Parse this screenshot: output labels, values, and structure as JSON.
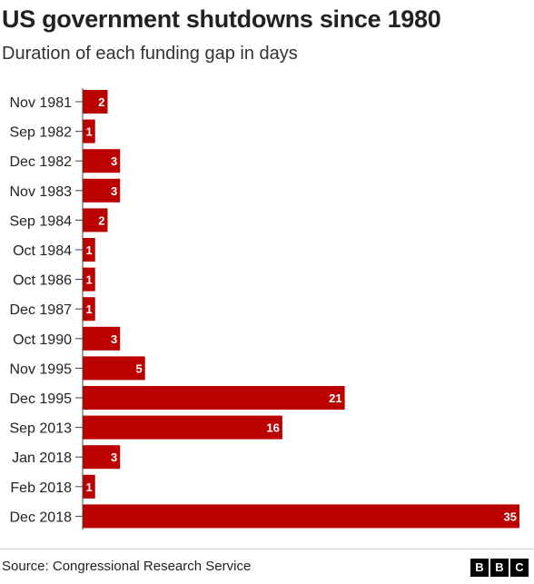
{
  "header": {
    "title": "US government shutdowns since 1980",
    "subtitle": "Duration of each funding gap in days"
  },
  "footer": {
    "source": "Source: Congressional Research Service",
    "logo_letters": [
      "B",
      "B",
      "C"
    ]
  },
  "colors": {
    "bar": "#bb0000",
    "label": "#ffffff",
    "text": "#222222"
  },
  "chart_data": {
    "type": "bar",
    "orientation": "horizontal",
    "categories": [
      "Nov 1981",
      "Sep 1982",
      "Dec 1982",
      "Nov 1983",
      "Sep 1984",
      "Oct 1984",
      "Oct 1986",
      "Dec 1987",
      "Oct 1990",
      "Nov 1995",
      "Dec 1995",
      "Sep 2013",
      "Jan 2018",
      "Feb 2018",
      "Dec 2018"
    ],
    "values": [
      2,
      1,
      3,
      3,
      2,
      1,
      1,
      1,
      3,
      5,
      21,
      16,
      3,
      1,
      35
    ],
    "title": "US government shutdowns since 1980",
    "subtitle": "Duration of each funding gap in days",
    "xlim": [
      0,
      35
    ],
    "grid": false,
    "data_labels": true
  }
}
